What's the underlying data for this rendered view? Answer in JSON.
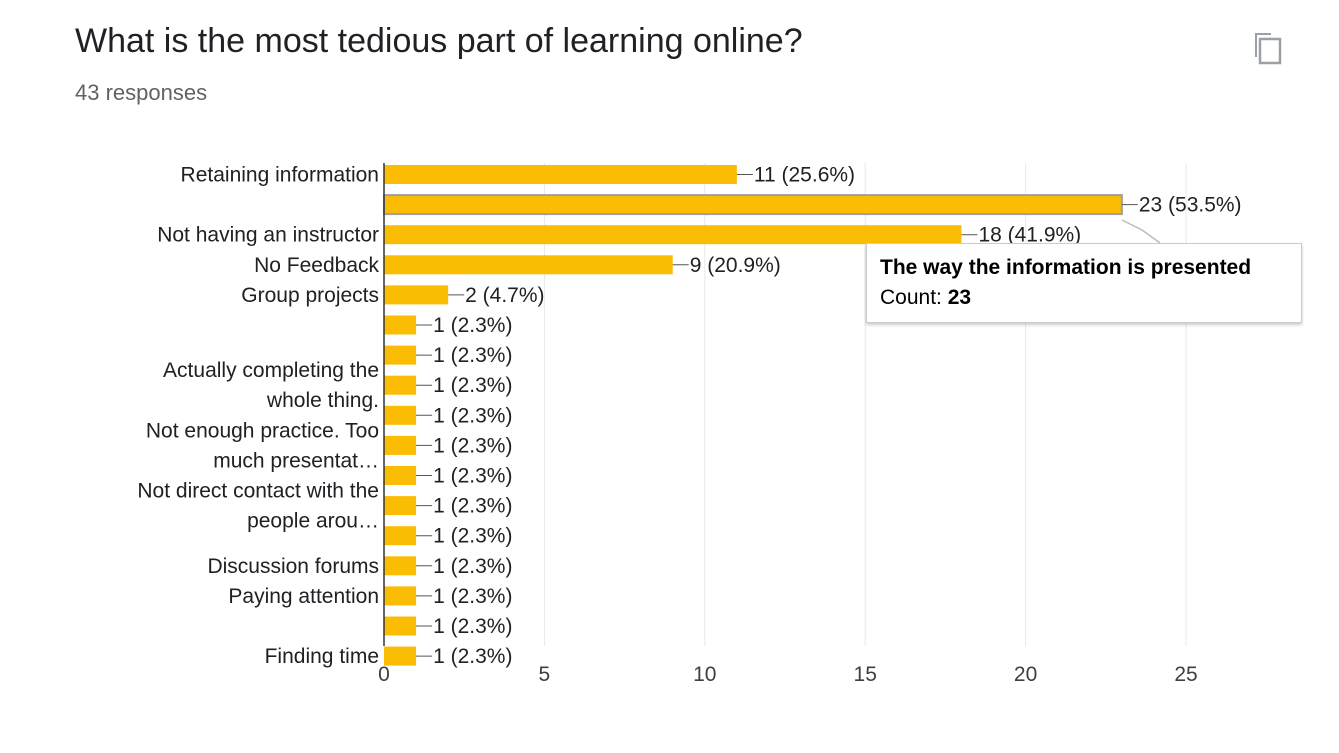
{
  "header": {
    "title": "What is the most tedious part of learning online?",
    "responses": "43 responses"
  },
  "icons": {
    "copy": "copy-icon"
  },
  "colors": {
    "bar": "#fbbc04",
    "bar_hover": "#fbbc04",
    "grid": "#e8e8e8",
    "axis": "#333333",
    "text": "#202124"
  },
  "tooltip": {
    "title": "The way the information is presented",
    "count_label": "Count: ",
    "count_value": "23"
  },
  "chart_data": {
    "type": "bar",
    "orientation": "horizontal",
    "xlim": [
      0,
      25
    ],
    "x_ticks": [
      "0",
      "5",
      "10",
      "15",
      "20",
      "25"
    ],
    "grid": true,
    "categories": [
      "Retaining information",
      "",
      "Not having an instructor",
      "No Feedback",
      "Group projects",
      "",
      "Actually completing the whole thing.",
      "",
      "Not enough practice. Too much presentat…",
      "",
      "Not direct contact with the people arou…",
      "",
      "",
      "Discussion forums",
      "Paying attention",
      "",
      "Finding time"
    ],
    "category_label_lines": [
      [
        "Retaining information"
      ],
      [],
      [
        "Not having an instructor"
      ],
      [
        "No Feedback"
      ],
      [
        "Group projects"
      ],
      [],
      [
        "Actually completing the",
        "whole thing."
      ],
      [],
      [
        "Not enough practice. Too",
        "much presentat…"
      ],
      [],
      [
        "Not direct contact with the",
        "people arou…"
      ],
      [],
      [],
      [
        "Discussion forums"
      ],
      [
        "Paying attention"
      ],
      [],
      [
        "Finding time"
      ]
    ],
    "values": [
      11,
      23,
      18,
      9,
      2,
      1,
      1,
      1,
      1,
      1,
      1,
      1,
      1,
      1,
      1,
      1,
      1
    ],
    "data_labels": [
      "11 (25.6%)",
      "23 (53.5%)",
      "18 (41.9%)",
      "9 (20.9%)",
      "2 (4.7%)",
      "1 (2.3%)",
      "1 (2.3%)",
      "1 (2.3%)",
      "1 (2.3%)",
      "1 (2.3%)",
      "1 (2.3%)",
      "1 (2.3%)",
      "1 (2.3%)",
      "1 (2.3%)",
      "1 (2.3%)",
      "1 (2.3%)",
      "1 (2.3%)"
    ],
    "highlighted_index": 1
  }
}
